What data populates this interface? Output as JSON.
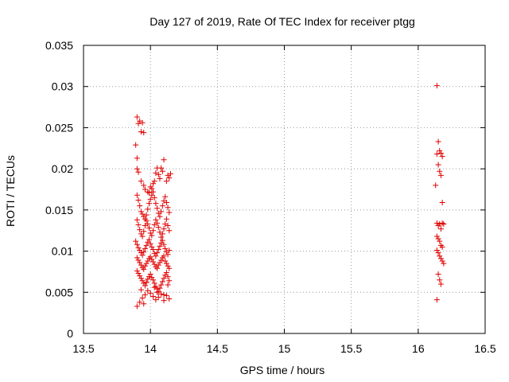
{
  "chart_data": {
    "type": "scatter",
    "title": "Day 127 of 2019, Rate Of TEC Index for receiver ptgg",
    "xlabel": "GPS time / hours",
    "ylabel": "ROTI / TECUs",
    "xlim": [
      13.5,
      16.5
    ],
    "ylim": [
      0,
      0.035
    ],
    "xticks": [
      13.5,
      14,
      14.5,
      15,
      15.5,
      16,
      16.5
    ],
    "xtick_labels": [
      "13.5",
      "14",
      "14.5",
      "15",
      "15.5",
      "16",
      "16.5"
    ],
    "yticks": [
      0,
      0.005,
      0.01,
      0.015,
      0.02,
      0.025,
      0.03,
      0.035
    ],
    "ytick_labels": [
      "0",
      "0.005",
      "0.01",
      "0.015",
      "0.02",
      "0.025",
      "0.03",
      "0.035"
    ],
    "grid": true,
    "marker": "+",
    "series": [
      {
        "name": "ROTI",
        "color": "#e00000",
        "x": [
          13.9,
          13.91,
          13.92,
          13.93,
          13.95,
          13.94,
          13.89,
          13.9,
          13.9,
          13.91,
          13.93,
          13.95,
          13.96,
          13.98,
          13.99,
          14.0,
          14.01,
          14.02,
          14.03,
          14.04,
          14.05,
          14.06,
          14.07,
          14.08,
          14.09,
          14.1,
          14.12,
          14.13,
          14.14,
          14.15,
          13.9,
          13.91,
          13.92,
          13.93,
          13.94,
          13.95,
          13.96,
          13.97,
          13.98,
          13.99,
          14.0,
          14.01,
          14.02,
          14.03,
          14.04,
          14.05,
          14.06,
          14.07,
          14.08,
          14.09,
          14.1,
          14.11,
          14.12,
          14.13,
          14.14,
          13.9,
          13.91,
          13.92,
          13.93,
          13.94,
          13.95,
          13.96,
          13.97,
          13.98,
          13.99,
          14.0,
          14.01,
          14.02,
          14.03,
          14.04,
          14.05,
          14.06,
          14.07,
          14.08,
          14.09,
          14.1,
          14.11,
          14.12,
          14.13,
          14.14,
          13.89,
          13.9,
          13.91,
          13.92,
          13.93,
          13.94,
          13.95,
          13.96,
          13.97,
          13.98,
          13.99,
          14.0,
          14.01,
          14.02,
          14.03,
          14.04,
          14.05,
          14.06,
          14.07,
          14.08,
          14.09,
          14.1,
          14.11,
          14.12,
          14.13,
          14.14,
          13.9,
          13.91,
          13.92,
          13.93,
          13.94,
          13.95,
          13.96,
          13.97,
          13.98,
          13.99,
          14.0,
          14.01,
          14.02,
          14.03,
          14.04,
          14.05,
          14.06,
          14.07,
          14.08,
          14.09,
          14.1,
          14.11,
          14.12,
          14.13,
          14.14,
          13.9,
          13.91,
          13.92,
          13.93,
          13.94,
          13.95,
          13.96,
          13.97,
          13.98,
          13.99,
          14.0,
          14.01,
          14.02,
          14.03,
          14.04,
          14.05,
          14.06,
          14.07,
          14.08,
          14.09,
          14.1,
          14.11,
          14.12,
          14.13,
          14.14,
          13.9,
          13.92,
          13.94,
          13.96,
          13.98,
          14.0,
          14.02,
          14.04,
          14.06,
          14.08,
          14.1,
          14.12,
          14.14,
          13.95,
          14.05,
          14.1,
          13.93,
          14.03,
          14.13,
          13.97,
          16.14,
          16.15,
          16.16,
          16.17,
          16.18,
          16.14,
          16.15,
          16.16,
          16.17,
          16.18,
          16.13,
          16.14,
          16.15,
          16.16,
          16.17,
          16.18,
          16.19,
          16.14,
          16.15,
          16.16,
          16.17,
          16.18,
          16.14,
          16.15,
          16.16,
          16.17,
          16.18,
          16.19,
          16.15,
          16.16,
          16.17,
          16.14
        ],
        "y": [
          0.0263,
          0.0255,
          0.0258,
          0.0245,
          0.0244,
          0.0256,
          0.0229,
          0.0213,
          0.02,
          0.0196,
          0.0185,
          0.018,
          0.0175,
          0.0172,
          0.0171,
          0.0178,
          0.0176,
          0.0182,
          0.0185,
          0.0195,
          0.0201,
          0.0193,
          0.0188,
          0.0201,
          0.0197,
          0.0211,
          0.0185,
          0.0192,
          0.0189,
          0.0194,
          0.0168,
          0.0162,
          0.0155,
          0.0148,
          0.0145,
          0.0142,
          0.0139,
          0.0144,
          0.0151,
          0.0158,
          0.0163,
          0.0168,
          0.0172,
          0.0165,
          0.0158,
          0.0152,
          0.0146,
          0.0142,
          0.0148,
          0.0155,
          0.0161,
          0.0166,
          0.0159,
          0.0153,
          0.0147,
          0.0138,
          0.0132,
          0.0126,
          0.0121,
          0.0118,
          0.0124,
          0.0131,
          0.0137,
          0.0133,
          0.0128,
          0.0122,
          0.0119,
          0.0125,
          0.0132,
          0.0138,
          0.0134,
          0.0129,
          0.0123,
          0.0117,
          0.0121,
          0.0127,
          0.0133,
          0.0139,
          0.0131,
          0.0125,
          0.0112,
          0.0108,
          0.0104,
          0.0101,
          0.0098,
          0.0095,
          0.0099,
          0.0103,
          0.0107,
          0.0111,
          0.0114,
          0.0109,
          0.0105,
          0.0102,
          0.0097,
          0.0094,
          0.0098,
          0.0102,
          0.0106,
          0.011,
          0.0113,
          0.0108,
          0.0103,
          0.0099,
          0.0096,
          0.0101,
          0.0092,
          0.0089,
          0.0086,
          0.0083,
          0.008,
          0.0078,
          0.0082,
          0.0085,
          0.0088,
          0.0091,
          0.0093,
          0.009,
          0.0087,
          0.0084,
          0.0081,
          0.0079,
          0.0083,
          0.0086,
          0.0089,
          0.0092,
          0.0094,
          0.0088,
          0.0085,
          0.0082,
          0.0079,
          0.0076,
          0.0073,
          0.007,
          0.0067,
          0.0064,
          0.0061,
          0.0058,
          0.0062,
          0.0066,
          0.0069,
          0.0072,
          0.0068,
          0.0065,
          0.0061,
          0.0057,
          0.0054,
          0.0051,
          0.0055,
          0.0059,
          0.0063,
          0.0067,
          0.0071,
          0.0074,
          0.0069,
          0.0064,
          0.0033,
          0.0038,
          0.0043,
          0.0047,
          0.0052,
          0.0049,
          0.0045,
          0.0041,
          0.0044,
          0.0048,
          0.004,
          0.0046,
          0.0042,
          0.0036,
          0.005,
          0.0047,
          0.0053,
          0.0056,
          0.0059,
          0.0062,
          0.0301,
          0.0233,
          0.0222,
          0.0219,
          0.0215,
          0.0218,
          0.0205,
          0.0197,
          0.0192,
          0.0159,
          0.018,
          0.0134,
          0.0131,
          0.0133,
          0.0127,
          0.0134,
          0.0133,
          0.0118,
          0.0115,
          0.0112,
          0.0107,
          0.0105,
          0.0101,
          0.0098,
          0.0094,
          0.0091,
          0.0088,
          0.0085,
          0.0072,
          0.0065,
          0.006,
          0.0041
        ]
      }
    ]
  }
}
